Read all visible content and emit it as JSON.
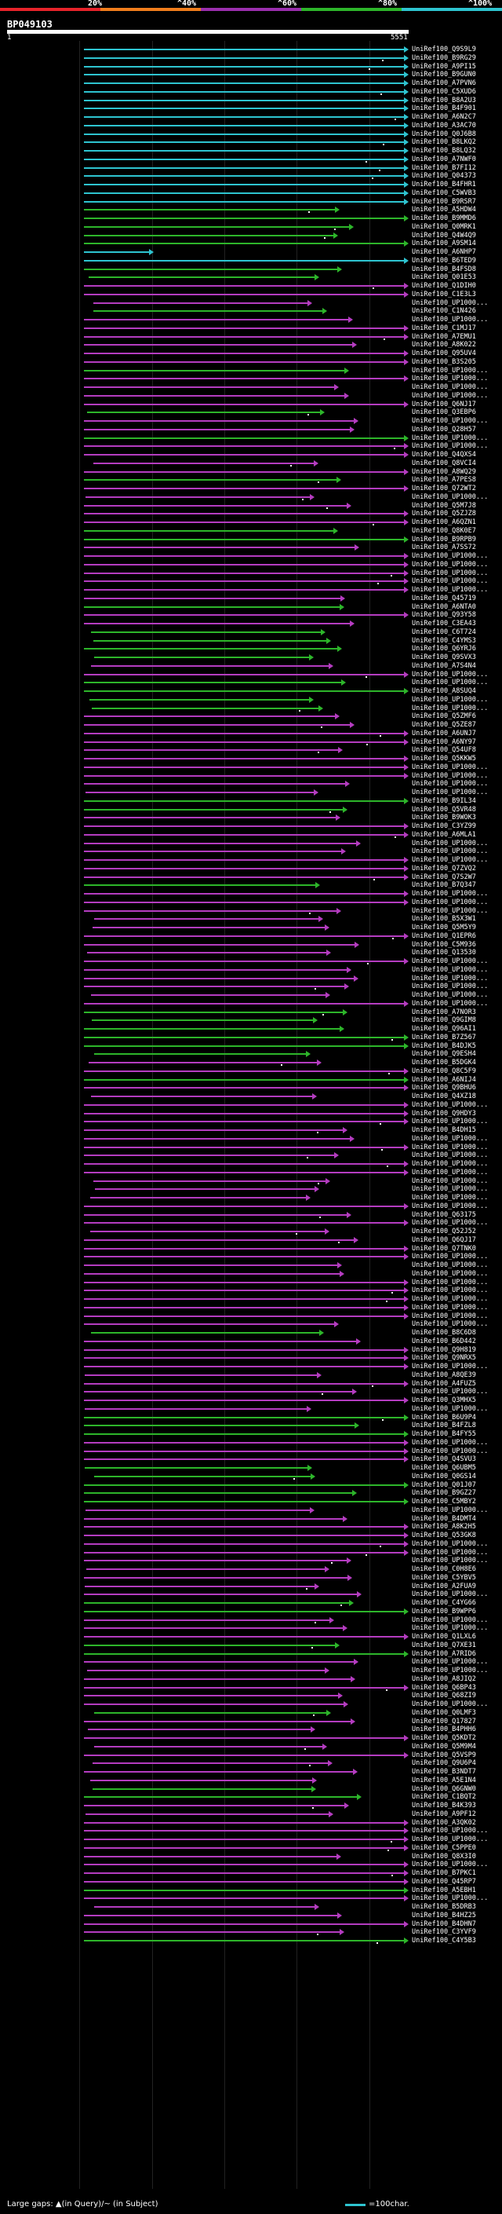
{
  "score_scale": {
    "labels": [
      "20%",
      "^40%",
      "^60%",
      "^80%",
      "^100%"
    ],
    "colors": [
      "#e8232a",
      "#f07d1c",
      "#9b2fae",
      "#2db52a",
      "#2ec4d0"
    ]
  },
  "query": {
    "title": "BP049103",
    "start": "1",
    "end": "5551"
  },
  "footer": {
    "gaps_text": "Large gaps: ▲(in Query)/~ (in Subject)",
    "legend_text": "=100char."
  },
  "hits": [
    {
      "label": "UniRef100_Q9S9L9",
      "color": "cyan"
    },
    {
      "label": "UniRef100_B9RG29",
      "color": "cyan"
    },
    {
      "label": "UniRef100_A9PI15",
      "color": "cyan"
    },
    {
      "label": "UniRef100_B9GUN0",
      "color": "cyan"
    },
    {
      "label": "UniRef100_A7PVN6",
      "color": "cyan"
    },
    {
      "label": "UniRef100_C5XUD6",
      "color": "cyan"
    },
    {
      "label": "UniRef100_B8A2U3",
      "color": "cyan"
    },
    {
      "label": "UniRef100_B4F901",
      "color": "cyan"
    },
    {
      "label": "UniRef100_A6N2C7",
      "color": "cyan"
    },
    {
      "label": "UniRef100_A3AC70",
      "color": "cyan"
    },
    {
      "label": "UniRef100_Q0J6B8",
      "color": "cyan"
    },
    {
      "label": "UniRef100_B8LKQ2",
      "color": "cyan"
    },
    {
      "label": "UniRef100_B8LQ32",
      "color": "cyan"
    },
    {
      "label": "UniRef100_A7NWF0",
      "color": "cyan"
    },
    {
      "label": "UniRef100_B7FI12",
      "color": "cyan"
    },
    {
      "label": "UniRef100_Q04373",
      "color": "cyan"
    },
    {
      "label": "UniRef100_B4FHR1",
      "color": "cyan"
    },
    {
      "label": "UniRef100_C5WVB3",
      "color": "cyan"
    },
    {
      "label": "UniRef100_B9RSR7",
      "color": "cyan"
    },
    {
      "label": "UniRef100_A5HDW4",
      "color": "green"
    },
    {
      "label": "UniRef100_B9MMD6",
      "color": "green"
    },
    {
      "label": "UniRef100_Q0MRK1",
      "color": "green"
    },
    {
      "label": "UniRef100_Q4W4Q9",
      "color": "green"
    },
    {
      "label": "UniRef100_A9SM14",
      "color": "green"
    },
    {
      "label": "UniRef100_A6NHP7",
      "color": "cyan"
    },
    {
      "label": "UniRef100_B6TED9",
      "color": "cyan"
    },
    {
      "label": "UniRef100_B4FSD8",
      "color": "green"
    },
    {
      "label": "UniRef100_Q01E53",
      "color": "green"
    },
    {
      "label": "UniRef100_Q1DIH0",
      "color": "magenta"
    },
    {
      "label": "UniRef100_C1E3L3",
      "color": "magenta"
    },
    {
      "label": "UniRef100_UP1000...",
      "color": "magenta"
    },
    {
      "label": "UniRef100_C1N426",
      "color": "green"
    },
    {
      "label": "UniRef100_UP1000...",
      "color": "magenta"
    },
    {
      "label": "UniRef100_C1MJ17",
      "color": "magenta"
    },
    {
      "label": "UniRef100_A7EMU1",
      "color": "magenta"
    },
    {
      "label": "UniRef100_A8K022",
      "color": "magenta"
    },
    {
      "label": "UniRef100_Q95UV4",
      "color": "magenta"
    },
    {
      "label": "UniRef100_B3S205",
      "color": "magenta"
    },
    {
      "label": "UniRef100_UP1000...",
      "color": "green"
    },
    {
      "label": "UniRef100_UP1000...",
      "color": "magenta"
    },
    {
      "label": "UniRef100_UP1000...",
      "color": "magenta"
    },
    {
      "label": "UniRef100_UP1000...",
      "color": "magenta"
    },
    {
      "label": "UniRef100_Q6NJ17",
      "color": "magenta"
    },
    {
      "label": "UniRef100_Q3EBP6",
      "color": "green"
    },
    {
      "label": "UniRef100_UP1000...",
      "color": "magenta"
    },
    {
      "label": "UniRef100_Q28H57",
      "color": "magenta"
    },
    {
      "label": "UniRef100_UP1000...",
      "color": "green"
    },
    {
      "label": "UniRef100_UP1000...",
      "color": "magenta"
    },
    {
      "label": "UniRef100_Q4QXS4",
      "color": "magenta"
    },
    {
      "label": "UniRef100_Q8VCI4",
      "color": "magenta"
    },
    {
      "label": "UniRef100_A8WQ29",
      "color": "magenta"
    },
    {
      "label": "UniRef100_A7PES8",
      "color": "green"
    },
    {
      "label": "UniRef100_Q72WT2",
      "color": "magenta"
    },
    {
      "label": "UniRef100_UP1000...",
      "color": "magenta"
    },
    {
      "label": "UniRef100_Q5M7J8",
      "color": "magenta"
    },
    {
      "label": "UniRef100_Q5ZJZ8",
      "color": "magenta"
    },
    {
      "label": "UniRef100_A6QZN1",
      "color": "magenta"
    },
    {
      "label": "UniRef100_Q8K0E7",
      "color": "green"
    },
    {
      "label": "UniRef100_B9RPB9",
      "color": "green"
    },
    {
      "label": "UniRef100_A7SS72",
      "color": "magenta"
    },
    {
      "label": "UniRef100_UP1000...",
      "color": "magenta"
    },
    {
      "label": "UniRef100_UP1000...",
      "color": "magenta"
    },
    {
      "label": "UniRef100_UP1000...",
      "color": "magenta"
    },
    {
      "label": "UniRef100_UP1000...",
      "color": "magenta"
    },
    {
      "label": "UniRef100_UP1000...",
      "color": "magenta"
    },
    {
      "label": "UniRef100_Q45719",
      "color": "magenta"
    },
    {
      "label": "UniRef100_A6NTA0",
      "color": "green"
    },
    {
      "label": "UniRef100_Q93Y58",
      "color": "magenta"
    },
    {
      "label": "UniRef100_C3EA43",
      "color": "magenta"
    },
    {
      "label": "UniRef100_C6T724",
      "color": "green"
    },
    {
      "label": "UniRef100_C4YMS3",
      "color": "green"
    },
    {
      "label": "UniRef100_Q6YRJ6",
      "color": "green"
    },
    {
      "label": "UniRef100_Q9SVX3",
      "color": "green"
    },
    {
      "label": "UniRef100_A7S4N4",
      "color": "magenta"
    },
    {
      "label": "UniRef100_UP1000...",
      "color": "magenta"
    },
    {
      "label": "UniRef100_UP1000...",
      "color": "green"
    },
    {
      "label": "UniRef100_A8SUQ4",
      "color": "green"
    },
    {
      "label": "UniRef100_UP1000...",
      "color": "green"
    },
    {
      "label": "UniRef100_UP1000...",
      "color": "green"
    },
    {
      "label": "UniRef100_Q5ZMF6",
      "color": "magenta"
    },
    {
      "label": "UniRef100_Q5ZE87",
      "color": "magenta"
    },
    {
      "label": "UniRef100_A6UNJ7",
      "color": "magenta"
    },
    {
      "label": "UniRef100_A6NY97",
      "color": "magenta"
    },
    {
      "label": "UniRef100_Q54UF8",
      "color": "magenta"
    },
    {
      "label": "UniRef100_Q5KKW5",
      "color": "magenta"
    },
    {
      "label": "UniRef100_UP1000...",
      "color": "magenta"
    },
    {
      "label": "UniRef100_UP1000...",
      "color": "magenta"
    },
    {
      "label": "UniRef100_UP1000...",
      "color": "magenta"
    },
    {
      "label": "UniRef100_UP1000...",
      "color": "magenta"
    },
    {
      "label": "UniRef100_B9IL34",
      "color": "green"
    },
    {
      "label": "UniRef100_Q5VR48",
      "color": "green"
    },
    {
      "label": "UniRef100_B9WOK3",
      "color": "magenta"
    },
    {
      "label": "UniRef100_C3YZ99",
      "color": "magenta"
    },
    {
      "label": "UniRef100_A6MLA1",
      "color": "magenta"
    },
    {
      "label": "UniRef100_UP1000...",
      "color": "magenta"
    },
    {
      "label": "UniRef100_UP1000...",
      "color": "magenta"
    },
    {
      "label": "UniRef100_UP1000...",
      "color": "magenta"
    },
    {
      "label": "UniRef100_Q7ZVQ2",
      "color": "magenta"
    },
    {
      "label": "UniRef100_Q7S2W7",
      "color": "magenta"
    },
    {
      "label": "UniRef100_B7Q347",
      "color": "green"
    },
    {
      "label": "UniRef100_UP1000...",
      "color": "magenta"
    },
    {
      "label": "UniRef100_UP1000...",
      "color": "magenta"
    },
    {
      "label": "UniRef100_UP1000...",
      "color": "magenta"
    },
    {
      "label": "UniRef100_B5X3W1",
      "color": "magenta"
    },
    {
      "label": "UniRef100_Q5M5Y9",
      "color": "magenta"
    },
    {
      "label": "UniRef100_Q1EPR6",
      "color": "magenta"
    },
    {
      "label": "UniRef100_C5M936",
      "color": "magenta"
    },
    {
      "label": "UniRef100_Q13530",
      "color": "magenta"
    },
    {
      "label": "UniRef100_UP1000...",
      "color": "magenta"
    },
    {
      "label": "UniRef100_UP1000...",
      "color": "magenta"
    },
    {
      "label": "UniRef100_UP1000...",
      "color": "magenta"
    },
    {
      "label": "UniRef100_UP1000...",
      "color": "magenta"
    },
    {
      "label": "UniRef100_UP1000...",
      "color": "magenta"
    },
    {
      "label": "UniRef100_UP1000...",
      "color": "magenta"
    },
    {
      "label": "UniRef100_A7NOR3",
      "color": "green"
    },
    {
      "label": "UniRef100_Q9GIM8",
      "color": "green"
    },
    {
      "label": "UniRef100_Q96AI1",
      "color": "green"
    },
    {
      "label": "UniRef100_B7Z567",
      "color": "green"
    },
    {
      "label": "UniRef100_B4DJK5",
      "color": "green"
    },
    {
      "label": "UniRef100_Q9ESH4",
      "color": "green"
    },
    {
      "label": "UniRef100_B5DGK4",
      "color": "magenta"
    },
    {
      "label": "UniRef100_Q8C5F9",
      "color": "magenta"
    },
    {
      "label": "UniRef100_A6NIJ4",
      "color": "green"
    },
    {
      "label": "UniRef100_Q9BHU6",
      "color": "magenta"
    },
    {
      "label": "UniRef100_Q4XZ18",
      "color": "magenta"
    },
    {
      "label": "UniRef100_UP1000...",
      "color": "magenta"
    },
    {
      "label": "UniRef100_Q9HDY3",
      "color": "magenta"
    },
    {
      "label": "UniRef100_UP1000...",
      "color": "magenta"
    },
    {
      "label": "UniRef100_B4DH15",
      "color": "magenta"
    },
    {
      "label": "UniRef100_UP1000...",
      "color": "magenta"
    },
    {
      "label": "UniRef100_UP1000...",
      "color": "magenta"
    },
    {
      "label": "UniRef100_UP1000...",
      "color": "magenta"
    },
    {
      "label": "UniRef100_UP1000...",
      "color": "magenta"
    },
    {
      "label": "UniRef100_UP1000...",
      "color": "magenta"
    },
    {
      "label": "UniRef100_UP1000...",
      "color": "magenta"
    },
    {
      "label": "UniRef100_UP1000...",
      "color": "magenta"
    },
    {
      "label": "UniRef100_UP1000...",
      "color": "magenta"
    },
    {
      "label": "UniRef100_UP1000...",
      "color": "magenta"
    },
    {
      "label": "UniRef100_Q63175",
      "color": "magenta"
    },
    {
      "label": "UniRef100_UP1000...",
      "color": "magenta"
    },
    {
      "label": "UniRef100_Q52J52",
      "color": "magenta"
    },
    {
      "label": "UniRef100_Q6QJ17",
      "color": "magenta"
    },
    {
      "label": "UniRef100_Q7TNK0",
      "color": "magenta"
    },
    {
      "label": "UniRef100_UP1000...",
      "color": "magenta"
    },
    {
      "label": "UniRef100_UP1000...",
      "color": "magenta"
    },
    {
      "label": "UniRef100_UP1000...",
      "color": "magenta"
    },
    {
      "label": "UniRef100_UP1000...",
      "color": "magenta"
    },
    {
      "label": "UniRef100_UP1000...",
      "color": "magenta"
    },
    {
      "label": "UniRef100_UP1000...",
      "color": "magenta"
    },
    {
      "label": "UniRef100_UP1000...",
      "color": "magenta"
    },
    {
      "label": "UniRef100_UP1000...",
      "color": "magenta"
    },
    {
      "label": "UniRef100_UP1000...",
      "color": "magenta"
    },
    {
      "label": "UniRef100_B8C6D8",
      "color": "green"
    },
    {
      "label": "UniRef100_B6D442",
      "color": "magenta"
    },
    {
      "label": "UniRef100_Q9H819",
      "color": "magenta"
    },
    {
      "label": "UniRef100_Q9NRX5",
      "color": "magenta"
    },
    {
      "label": "UniRef100_UP1000...",
      "color": "magenta"
    },
    {
      "label": "UniRef100_A8QE39",
      "color": "magenta"
    },
    {
      "label": "UniRef100_A4FUZ5",
      "color": "magenta"
    },
    {
      "label": "UniRef100_UP1000...",
      "color": "magenta"
    },
    {
      "label": "UniRef100_Q3MHX5",
      "color": "magenta"
    },
    {
      "label": "UniRef100_UP1000...",
      "color": "magenta"
    },
    {
      "label": "UniRef100_B6U9P4",
      "color": "green"
    },
    {
      "label": "UniRef100_B4FZL8",
      "color": "green"
    },
    {
      "label": "UniRef100_B4FY55",
      "color": "green"
    },
    {
      "label": "UniRef100_UP1000...",
      "color": "magenta"
    },
    {
      "label": "UniRef100_UP1000...",
      "color": "magenta"
    },
    {
      "label": "UniRef100_Q4SVU3",
      "color": "magenta"
    },
    {
      "label": "UniRef100_Q6UBM5",
      "color": "green"
    },
    {
      "label": "UniRef100_Q0GS14",
      "color": "green"
    },
    {
      "label": "UniRef100_Q01J07",
      "color": "green"
    },
    {
      "label": "UniRef100_B9GZ27",
      "color": "green"
    },
    {
      "label": "UniRef100_C5MBY2",
      "color": "green"
    },
    {
      "label": "UniRef100_UP1000...",
      "color": "magenta"
    },
    {
      "label": "UniRef100_B4DMT4",
      "color": "magenta"
    },
    {
      "label": "UniRef100_A8K2H5",
      "color": "magenta"
    },
    {
      "label": "UniRef100_Q53GK8",
      "color": "magenta"
    },
    {
      "label": "UniRef100_UP1000...",
      "color": "magenta"
    },
    {
      "label": "UniRef100_UP1000...",
      "color": "magenta"
    },
    {
      "label": "UniRef100_UP1000...",
      "color": "magenta"
    },
    {
      "label": "UniRef100_C0H8E6",
      "color": "magenta"
    },
    {
      "label": "UniRef100_C5YBV5",
      "color": "magenta"
    },
    {
      "label": "UniRef100_A2FUA9",
      "color": "magenta"
    },
    {
      "label": "UniRef100_UP1000...",
      "color": "magenta"
    },
    {
      "label": "UniRef100_C4YG66",
      "color": "green"
    },
    {
      "label": "UniRef100_B9WPP6",
      "color": "green"
    },
    {
      "label": "UniRef100_UP1000...",
      "color": "magenta"
    },
    {
      "label": "UniRef100_UP1000...",
      "color": "magenta"
    },
    {
      "label": "UniRef100_Q1LXL6",
      "color": "magenta"
    },
    {
      "label": "UniRef100_Q7XE31",
      "color": "green"
    },
    {
      "label": "UniRef100_A7RID6",
      "color": "green"
    },
    {
      "label": "UniRef100_UP1000...",
      "color": "magenta"
    },
    {
      "label": "UniRef100_UP1000...",
      "color": "magenta"
    },
    {
      "label": "UniRef100_A8JIQ2",
      "color": "magenta"
    },
    {
      "label": "UniRef100_Q6BP43",
      "color": "magenta"
    },
    {
      "label": "UniRef100_Q68ZI9",
      "color": "magenta"
    },
    {
      "label": "UniRef100_UP1000...",
      "color": "magenta"
    },
    {
      "label": "UniRef100_Q0LMF3",
      "color": "green"
    },
    {
      "label": "UniRef100_Q17827",
      "color": "magenta"
    },
    {
      "label": "UniRef100_B4PHH6",
      "color": "magenta"
    },
    {
      "label": "UniRef100_Q5KDT2",
      "color": "magenta"
    },
    {
      "label": "UniRef100_Q5M9M4",
      "color": "magenta"
    },
    {
      "label": "UniRef100_Q5VSP9",
      "color": "magenta"
    },
    {
      "label": "UniRef100_Q9U6P4",
      "color": "magenta"
    },
    {
      "label": "UniRef100_B3NDT7",
      "color": "magenta"
    },
    {
      "label": "UniRef100_A5E1N4",
      "color": "magenta"
    },
    {
      "label": "UniRef100_Q6GNW0",
      "color": "green"
    },
    {
      "label": "UniRef100_C1BQT2",
      "color": "green"
    },
    {
      "label": "UniRef100_B4K393",
      "color": "magenta"
    },
    {
      "label": "UniRef100_A9PF12",
      "color": "magenta"
    },
    {
      "label": "UniRef100_A3QK02",
      "color": "magenta"
    },
    {
      "label": "UniRef100_UP1000...",
      "color": "magenta"
    },
    {
      "label": "UniRef100_UP1000...",
      "color": "magenta"
    },
    {
      "label": "UniRef100_C5PPE0",
      "color": "magenta"
    },
    {
      "label": "UniRef100_Q8X3I0",
      "color": "magenta"
    },
    {
      "label": "UniRef100_UP1000...",
      "color": "magenta"
    },
    {
      "label": "UniRef100_B7PKC1",
      "color": "magenta"
    },
    {
      "label": "UniRef100_Q45RP7",
      "color": "magenta"
    },
    {
      "label": "UniRef100_A5EBH1",
      "color": "green"
    },
    {
      "label": "UniRef100_UP1000...",
      "color": "magenta"
    },
    {
      "label": "UniRef100_B5DRB3",
      "color": "magenta"
    },
    {
      "label": "UniRef100_B4HZ25",
      "color": "magenta"
    },
    {
      "label": "UniRef100_B4DHN7",
      "color": "magenta"
    },
    {
      "label": "UniRef100_C3YVF9",
      "color": "magenta"
    },
    {
      "label": "UniRef100_C4Y5B3",
      "color": "green"
    }
  ]
}
